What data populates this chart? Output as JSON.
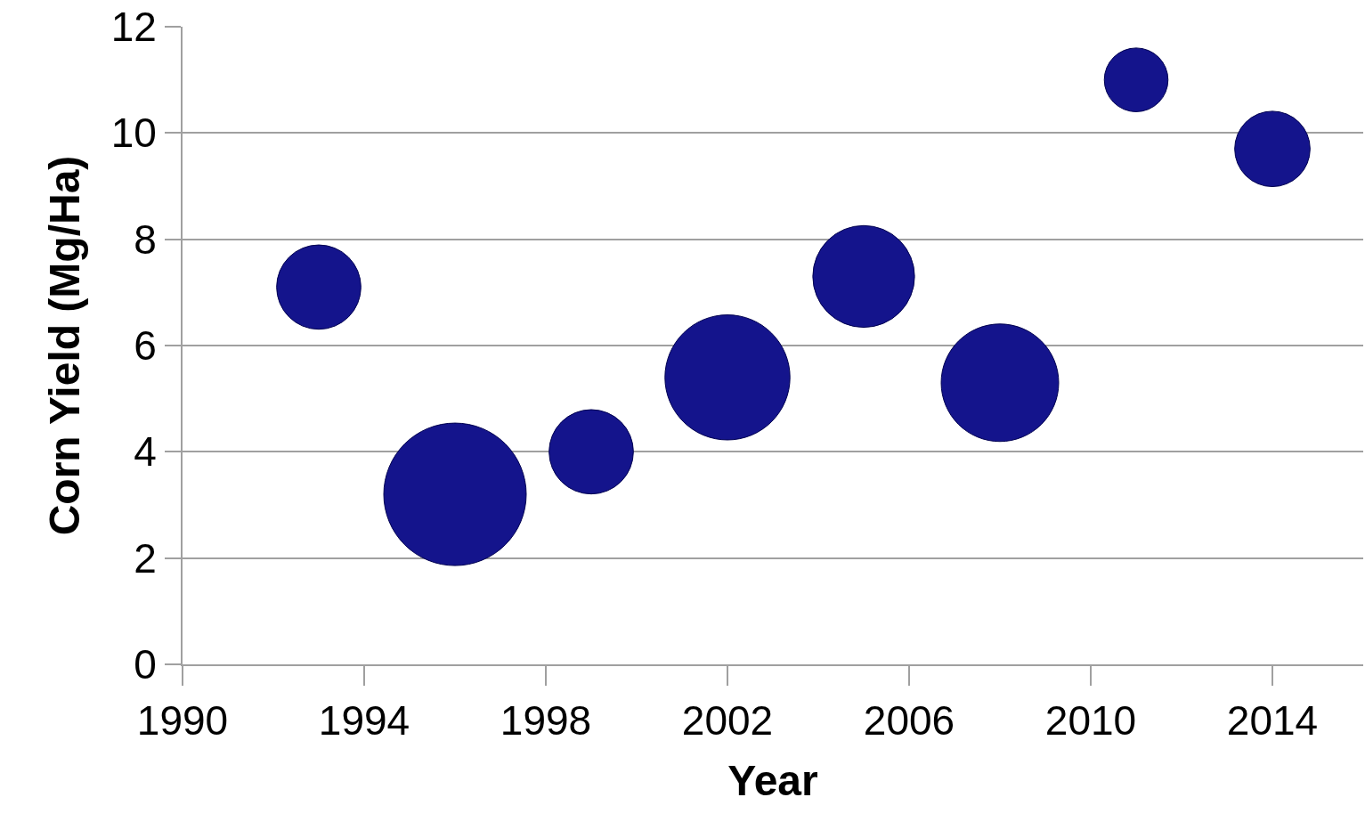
{
  "chart_data": {
    "type": "bubble",
    "xlabel": "Year",
    "ylabel": "Corn Yield (Mg/Ha)",
    "x": [
      1993,
      1996,
      1999,
      2002,
      2005,
      2008,
      2011,
      2014
    ],
    "series": [
      {
        "color": "#14148c",
        "values": [
          7.1,
          3.2,
          4.0,
          5.4,
          7.3,
          5.3,
          11.0,
          9.7
        ],
        "sizes": [
          0.35,
          1,
          0.35,
          0.77,
          0.51,
          0.68,
          0.2,
          0.28
        ]
      }
    ],
    "xlim": [
      1990,
      2016
    ],
    "xticks": [
      1990,
      1994,
      1998,
      2002,
      2006,
      2010,
      2014
    ],
    "ylim": [
      0,
      12
    ],
    "yticks": [
      0,
      2,
      4,
      6,
      8,
      10,
      12
    ],
    "grid": "y",
    "legend": false
  }
}
